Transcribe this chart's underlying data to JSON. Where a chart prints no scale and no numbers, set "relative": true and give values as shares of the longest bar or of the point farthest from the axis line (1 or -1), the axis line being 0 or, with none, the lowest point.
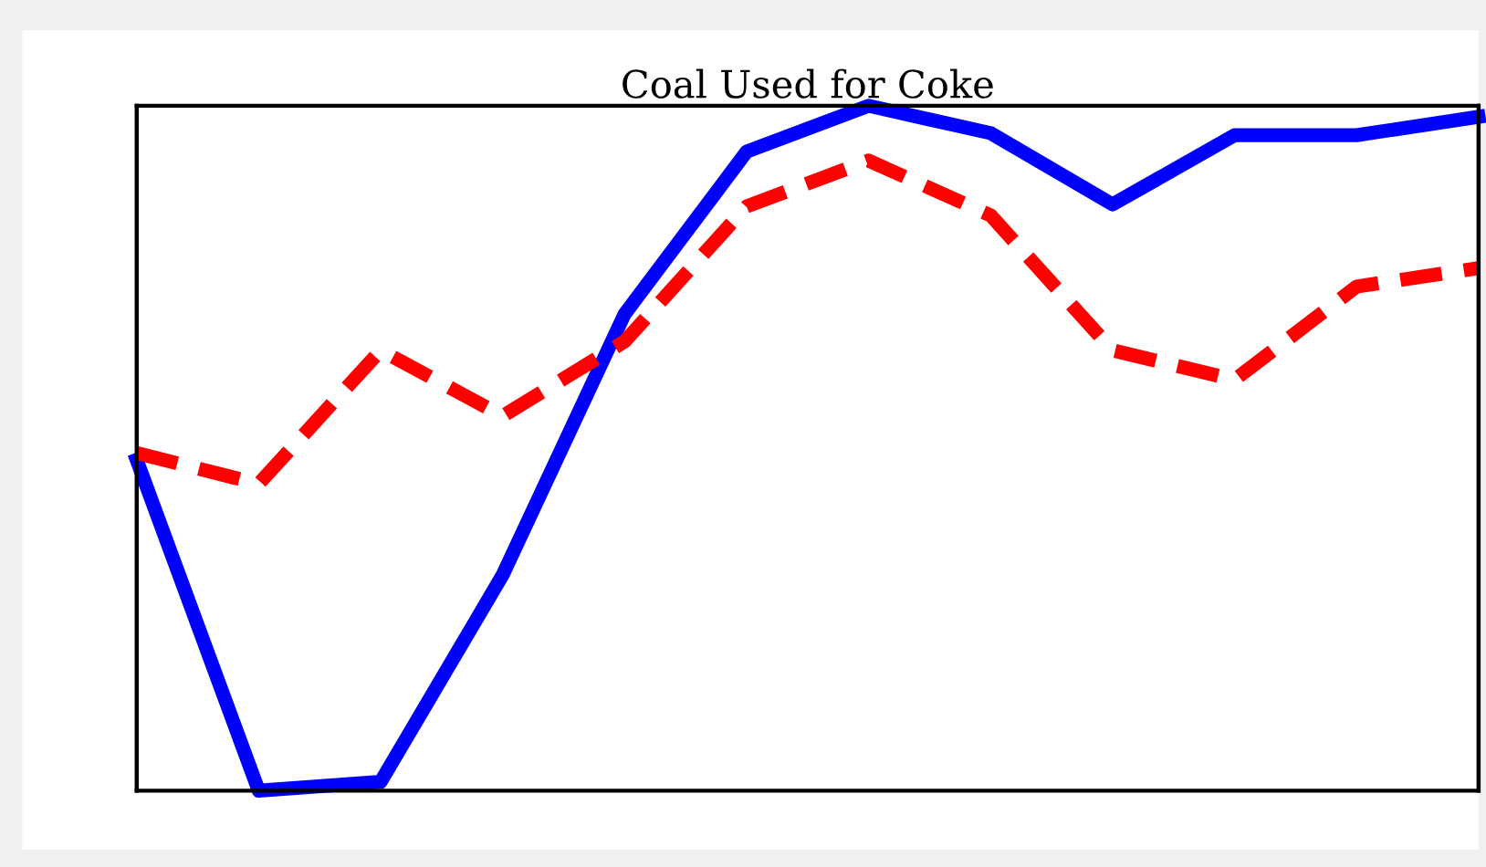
{
  "chart_data": {
    "type": "line",
    "title": "Coal Used for Coke",
    "relative": true,
    "categories": [
      null,
      null,
      null,
      null,
      null,
      null,
      null,
      null,
      null,
      null,
      null,
      null
    ],
    "series": [
      {
        "color": "#0000ff",
        "line_style": "solid",
        "values": [
          0.483,
          0,
          0.013,
          0.315,
          0.696,
          0.933,
          1.0,
          0.96,
          0.856,
          0.957,
          0.957,
          0.984
        ]
      },
      {
        "color": "#ff0000",
        "line_style": "dashed",
        "values": [
          0.493,
          0.448,
          0.643,
          0.547,
          0.656,
          0.853,
          0.92,
          0.84,
          0.643,
          0.6,
          0.736,
          0.763
        ]
      }
    ]
  }
}
